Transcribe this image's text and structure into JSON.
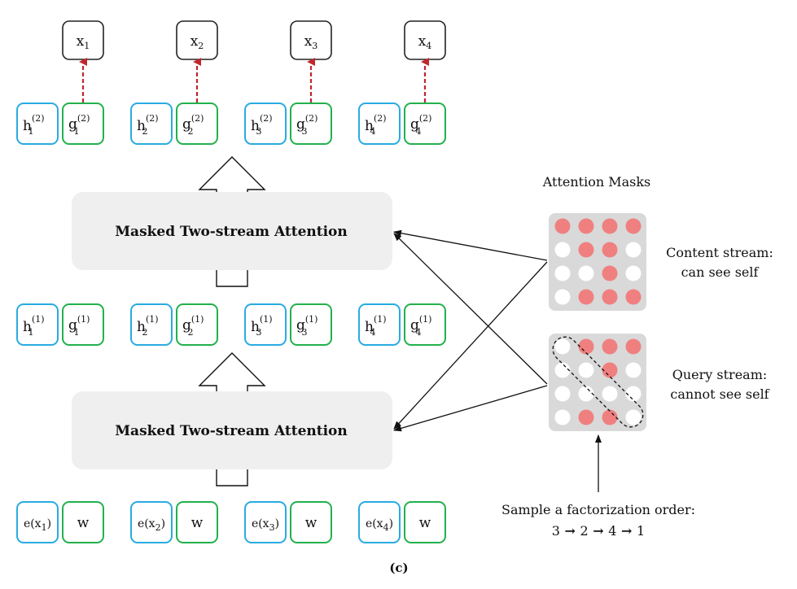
{
  "outputs": [
    {
      "base": "x",
      "sub": "1"
    },
    {
      "base": "x",
      "sub": "2"
    },
    {
      "base": "x",
      "sub": "3"
    },
    {
      "base": "x",
      "sub": "4"
    }
  ],
  "layer2": [
    {
      "h_base": "h",
      "h_sub": "1",
      "h_sup": "(2)",
      "g_base": "g",
      "g_sub": "1",
      "g_sup": "(2)"
    },
    {
      "h_base": "h",
      "h_sub": "2",
      "h_sup": "(2)",
      "g_base": "g",
      "g_sub": "2",
      "g_sup": "(2)"
    },
    {
      "h_base": "h",
      "h_sub": "3",
      "h_sup": "(2)",
      "g_base": "g",
      "g_sub": "3",
      "g_sup": "(2)"
    },
    {
      "h_base": "h",
      "h_sub": "4",
      "h_sup": "(2)",
      "g_base": "g",
      "g_sub": "4",
      "g_sup": "(2)"
    }
  ],
  "layer1": [
    {
      "h_base": "h",
      "h_sub": "1",
      "h_sup": "(1)",
      "g_base": "g",
      "g_sub": "1",
      "g_sup": "(1)"
    },
    {
      "h_base": "h",
      "h_sub": "2",
      "h_sup": "(1)",
      "g_base": "g",
      "g_sub": "2",
      "g_sup": "(1)"
    },
    {
      "h_base": "h",
      "h_sub": "3",
      "h_sup": "(1)",
      "g_base": "g",
      "g_sub": "3",
      "g_sup": "(1)"
    },
    {
      "h_base": "h",
      "h_sub": "4",
      "h_sup": "(1)",
      "g_base": "g",
      "g_sub": "4",
      "g_sup": "(1)"
    }
  ],
  "inputs": [
    {
      "e_text": "e(x",
      "e_sub": "1",
      "e_close": ")",
      "w": "w"
    },
    {
      "e_text": "e(x",
      "e_sub": "2",
      "e_close": ")",
      "w": "w"
    },
    {
      "e_text": "e(x",
      "e_sub": "3",
      "e_close": ")",
      "w": "w"
    },
    {
      "e_text": "e(x",
      "e_sub": "4",
      "e_close": ")",
      "w": "w"
    }
  ],
  "attention_top": {
    "title": "Masked Two-stream Attention"
  },
  "attention_bottom": {
    "title": "Masked Two-stream Attention"
  },
  "masks": {
    "heading": "Attention Masks",
    "content": {
      "label_line1": "Content stream:",
      "label_line2": "can see self",
      "grid": [
        [
          1,
          1,
          1,
          1
        ],
        [
          0,
          1,
          1,
          0
        ],
        [
          0,
          0,
          1,
          0
        ],
        [
          0,
          1,
          1,
          1
        ]
      ]
    },
    "query": {
      "label_line1": "Query stream:",
      "label_line2": "cannot see self",
      "grid": [
        [
          0,
          1,
          1,
          1
        ],
        [
          0,
          0,
          1,
          0
        ],
        [
          0,
          0,
          0,
          0
        ],
        [
          0,
          1,
          1,
          0
        ]
      ]
    }
  },
  "factorization": {
    "line1": "Sample a factorization order:",
    "order": [
      "3",
      "2",
      "4",
      "1"
    ],
    "arrow": "→"
  },
  "caption": "(c)",
  "colors": {
    "h_border": "#29abe2",
    "g_border": "#22b14c",
    "x_border": "#222222",
    "dashed_arrow": "#c1272d",
    "mask_on": "#f08080",
    "mask_off": "#ffffff",
    "mask_bg": "#d9d9d9",
    "block_bg": "#efefef"
  }
}
